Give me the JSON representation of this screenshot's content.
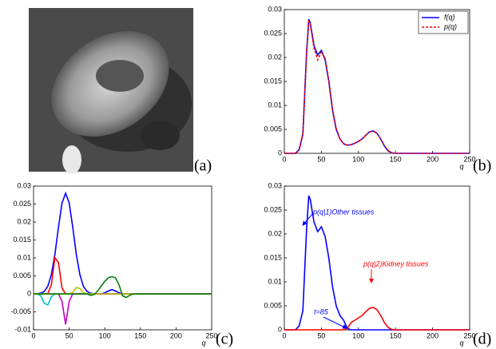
{
  "image_label": "(a)",
  "chart_data": [
    {
      "type": "line",
      "panel_label": "(b)",
      "xlabel": "q",
      "x": [
        0,
        5,
        10,
        15,
        20,
        25,
        30,
        33,
        35,
        40,
        45,
        50,
        55,
        60,
        65,
        70,
        75,
        80,
        85,
        90,
        95,
        100,
        105,
        110,
        115,
        120,
        125,
        130,
        135,
        140,
        145,
        150,
        200,
        250
      ],
      "series": [
        {
          "name": "f(q)",
          "color": "#0000ff",
          "style": "solid",
          "values": [
            0,
            0,
            0,
            0,
            0.0008,
            0.004,
            0.021,
            0.028,
            0.0272,
            0.0225,
            0.0205,
            0.0215,
            0.0195,
            0.015,
            0.009,
            0.005,
            0.003,
            0.002,
            0.0017,
            0.0018,
            0.0021,
            0.0025,
            0.003,
            0.0038,
            0.0045,
            0.0047,
            0.0042,
            0.003,
            0.0015,
            0.0005,
            0.0001,
            0,
            0,
            0
          ]
        },
        {
          "name": "p(q)",
          "color": "#ff0000",
          "style": "dashed",
          "values": [
            0,
            0,
            0,
            0,
            0.0006,
            0.004,
            0.021,
            0.0275,
            0.027,
            0.022,
            0.0195,
            0.0212,
            0.0198,
            0.0152,
            0.0092,
            0.0052,
            0.003,
            0.002,
            0.0017,
            0.0018,
            0.0021,
            0.0025,
            0.003,
            0.0038,
            0.0045,
            0.0046,
            0.0042,
            0.003,
            0.0016,
            0.0006,
            0.0001,
            0,
            0,
            0
          ]
        }
      ],
      "xlim": [
        0,
        250
      ],
      "xticks": [
        0,
        50,
        100,
        150,
        200,
        250
      ],
      "ylim": [
        0,
        0.03
      ],
      "yticks": [
        0,
        0.005,
        0.01,
        0.015,
        0.02,
        0.025,
        0.03
      ],
      "legend": "upper right"
    },
    {
      "type": "line",
      "panel_label": "(c)",
      "xlabel": "q",
      "x": [
        0,
        5,
        10,
        15,
        20,
        25,
        30,
        35,
        40,
        45,
        50,
        55,
        60,
        65,
        70,
        75,
        80,
        85,
        90,
        95,
        100,
        105,
        110,
        115,
        120,
        125,
        130,
        135,
        140,
        145,
        150,
        250
      ],
      "series": [
        {
          "color": "#0000ff",
          "values": [
            0,
            4e-05,
            0.00018,
            0.00068,
            0.0021,
            0.0054,
            0.011,
            0.0186,
            0.0253,
            0.028,
            0.0253,
            0.0186,
            0.011,
            0.0054,
            0.0021,
            0.00068,
            0.00018,
            4e-05,
            0,
            0,
            0.0003,
            0.0008,
            0.0012,
            0.0008,
            0.0003,
            0,
            0,
            0,
            0,
            0,
            0,
            0
          ]
        },
        {
          "color": "#ff0000",
          "values": [
            0,
            0,
            0,
            0,
            0.0001,
            0.0025,
            0.0101,
            0.0087,
            0.0016,
            0,
            0,
            0,
            0,
            0,
            0,
            0,
            0,
            0,
            0,
            0,
            0,
            0,
            0,
            0,
            0,
            0,
            0,
            0,
            0,
            0,
            0,
            0
          ]
        },
        {
          "color": "#00bfbf",
          "values": [
            0,
            0,
            -0.0005,
            -0.0026,
            -0.0031,
            -0.0008,
            0,
            0,
            0,
            0,
            0,
            0,
            0,
            0,
            0,
            0,
            0,
            0,
            0,
            0,
            0,
            0,
            0,
            0,
            0,
            0,
            0,
            0,
            0,
            0,
            0,
            0
          ]
        },
        {
          "color": "#bf00bf",
          "values": [
            0,
            0,
            0,
            0,
            0,
            0,
            0,
            0,
            -0.0021,
            -0.0085,
            -0.0021,
            0,
            0,
            0,
            0,
            0,
            0,
            0,
            0,
            0,
            0,
            0,
            0,
            0,
            0,
            0,
            0,
            0,
            0,
            0,
            0,
            0
          ]
        },
        {
          "color": "#bfbf00",
          "values": [
            0,
            0,
            0,
            0,
            0,
            0,
            0,
            0,
            0,
            0,
            0,
            0.0004,
            0.0018,
            0.0015,
            0.0003,
            0,
            0,
            0,
            0,
            0,
            0,
            0,
            0,
            0,
            0,
            0,
            0,
            0,
            0,
            0,
            0,
            0
          ]
        },
        {
          "color": "#008000",
          "values": [
            0,
            0,
            0,
            0,
            0,
            0,
            0,
            0,
            0,
            0,
            0,
            0,
            0,
            0,
            0,
            0,
            -0.0004,
            -0.0002,
            0.0008,
            0.0022,
            0.0035,
            0.0045,
            0.0048,
            0.0045,
            0.0025,
            -0.0005,
            -0.001,
            -0.0004,
            0,
            0,
            0,
            0
          ]
        }
      ],
      "xlim": [
        0,
        250
      ],
      "xticks": [
        0,
        50,
        100,
        150,
        200,
        250
      ],
      "ylim": [
        -0.01,
        0.03
      ],
      "yticks": [
        -0.01,
        -0.005,
        0,
        0.005,
        0.01,
        0.015,
        0.02,
        0.025,
        0.03
      ]
    },
    {
      "type": "line",
      "panel_label": "(d)",
      "xlabel": "q",
      "x": [
        0,
        5,
        10,
        15,
        20,
        25,
        30,
        33,
        35,
        40,
        45,
        50,
        55,
        60,
        65,
        70,
        75,
        80,
        85,
        90,
        95,
        100,
        105,
        110,
        115,
        120,
        125,
        130,
        135,
        140,
        145,
        150,
        200,
        250
      ],
      "series": [
        {
          "color": "#0000ff",
          "values": [
            0,
            0,
            0,
            0,
            0.0008,
            0.004,
            0.021,
            0.028,
            0.0272,
            0.0225,
            0.0205,
            0.0215,
            0.0195,
            0.015,
            0.009,
            0.005,
            0.003,
            0.002,
            0.0003,
            0,
            0,
            0,
            0,
            0,
            0,
            0,
            0,
            0,
            0,
            0,
            0,
            0,
            0,
            0
          ]
        },
        {
          "color": "#ff0000",
          "values": [
            0,
            0,
            0,
            0,
            0,
            0,
            0,
            0,
            0,
            0,
            0,
            0,
            0,
            0,
            0,
            0,
            0,
            0,
            0.0003,
            0.0015,
            0.002,
            0.0025,
            0.003,
            0.0038,
            0.0045,
            0.0047,
            0.0042,
            0.003,
            0.0015,
            0.0005,
            0.0001,
            0,
            0,
            0
          ]
        }
      ],
      "annotations": [
        "p(q|1)Other tissues",
        "p(q|2)Kidney tissues",
        "t=85"
      ],
      "xlim": [
        0,
        250
      ],
      "xticks": [
        0,
        50,
        100,
        150,
        200,
        250
      ],
      "ylim": [
        0,
        0.03
      ],
      "yticks": [
        0,
        0.005,
        0.01,
        0.015,
        0.02,
        0.025,
        0.03
      ]
    }
  ]
}
